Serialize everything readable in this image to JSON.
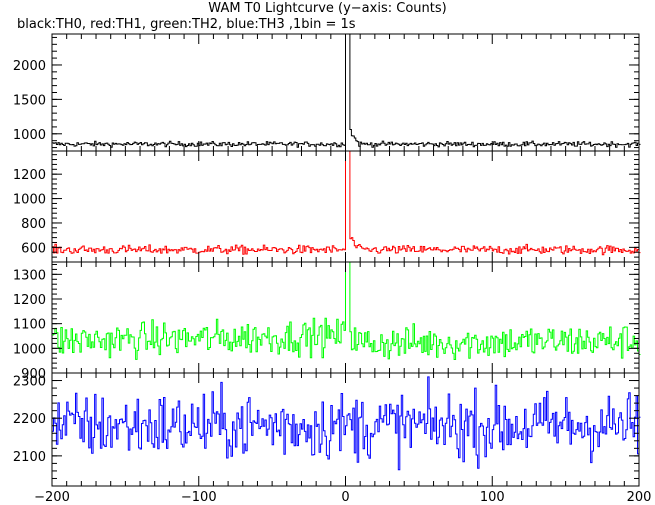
{
  "title": "WAM T0 Lightcurve (y−axis: Counts)",
  "subtitle": "black:TH0, red:TH1, green:TH2, blue:TH3 ,1bin = 1s",
  "chart_data": [
    {
      "type": "line",
      "series": [
        {
          "color": "#000000",
          "base": 850,
          "noise": 18,
          "peak": 2450,
          "ylim_clip": 2450
        }
      ],
      "ylim": [
        750,
        2450
      ],
      "yticks": [
        1000,
        1500,
        2000
      ],
      "xlim": [
        -200,
        200
      ],
      "grid": false
    },
    {
      "type": "line",
      "series": [
        {
          "color": "#ff0000",
          "base": 580,
          "noise": 18,
          "peak": 1390,
          "ylim_clip": 1390
        }
      ],
      "ylim": [
        480,
        1390
      ],
      "yticks": [
        600,
        800,
        1000,
        1200
      ],
      "xlim": [
        -200,
        200
      ],
      "grid": false
    },
    {
      "type": "line",
      "series": [
        {
          "color": "#00ff00",
          "base": 1030,
          "noise": 35,
          "peak": 1350,
          "ylim_clip": 1350
        }
      ],
      "ylim": [
        900,
        1350
      ],
      "yticks": [
        900,
        1000,
        1100,
        1200,
        1300
      ],
      "xlim": [
        -200,
        200
      ],
      "grid": false
    },
    {
      "type": "line",
      "series": [
        {
          "color": "#0000ff",
          "base": 2180,
          "noise": 45,
          "peak": null,
          "ylim_clip": 2320
        }
      ],
      "ylim": [
        2020,
        2320
      ],
      "yticks": [
        2100,
        2200,
        2300
      ],
      "xlim": [
        -200,
        200
      ],
      "xticks": [
        -200,
        -100,
        0,
        100,
        200
      ],
      "grid": false
    }
  ]
}
